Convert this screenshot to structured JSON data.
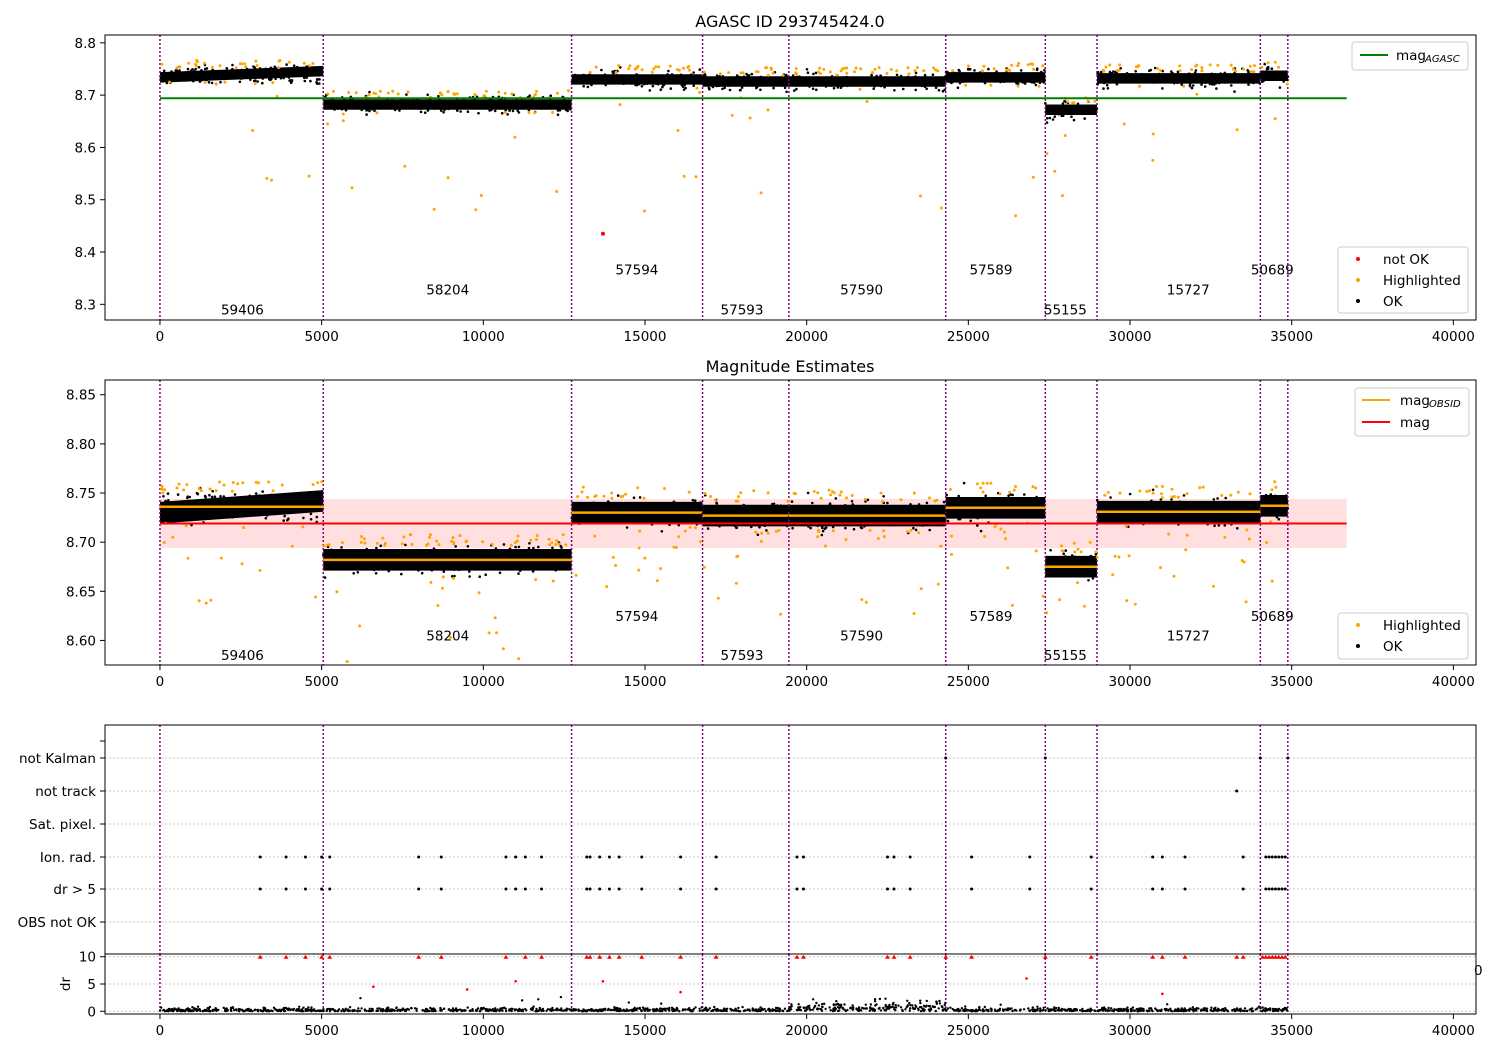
{
  "colors": {
    "ok": "#000000",
    "highlighted": "#ffa500",
    "not_ok": "#ff0000",
    "agasc_line": "#008000",
    "mag_line": "#ff0000",
    "mag_obsid": "#ffa500",
    "mag_band": "#ffc0c0",
    "obs_boundary": "#800080",
    "grid": "#b0b0b0"
  },
  "chart_data": [
    {
      "type": "scatter",
      "title": "AGASC ID 293745424.0",
      "xlim": [
        -1700,
        40700
      ],
      "ylim": [
        8.27,
        8.815
      ],
      "x_ticks": [
        0,
        5000,
        10000,
        15000,
        20000,
        25000,
        30000,
        35000,
        40000
      ],
      "x_tick_labels": [
        "0",
        "5000",
        "10000",
        "15000",
        "20000",
        "25000",
        "30000",
        "35000",
        "40000"
      ],
      "y_ticks": [
        8.3,
        8.4,
        8.5,
        8.6,
        8.7,
        8.8
      ],
      "y_tick_labels": [
        "8.3",
        "8.4",
        "8.5",
        "8.6",
        "8.7",
        "8.8"
      ],
      "obs_boundaries": [
        0,
        5050,
        12730,
        16780,
        19450,
        24300,
        27380,
        28980,
        34030,
        34880
      ],
      "obs_labels": [
        {
          "text": "59406",
          "x": 2550,
          "y": 8.29
        },
        {
          "text": "58204",
          "x": 8900,
          "y": 8.328
        },
        {
          "text": "57594",
          "x": 14750,
          "y": 8.367
        },
        {
          "text": "57593",
          "x": 18000,
          "y": 8.29
        },
        {
          "text": "57590",
          "x": 21700,
          "y": 8.328
        },
        {
          "text": "57589",
          "x": 25700,
          "y": 8.367
        },
        {
          "text": "55155",
          "x": 28000,
          "y": 8.29
        },
        {
          "text": "15727",
          "x": 31800,
          "y": 8.328
        },
        {
          "text": "50689",
          "x": 34400,
          "y": 8.367
        }
      ],
      "segments": [
        {
          "x0": 0,
          "x1": 5050,
          "mean": 8.74,
          "slope": -0.012
        },
        {
          "x0": 5050,
          "x1": 12730,
          "mean": 8.682,
          "slope": 0
        },
        {
          "x0": 12730,
          "x1": 16780,
          "mean": 8.73,
          "slope": 0
        },
        {
          "x0": 16780,
          "x1": 19450,
          "mean": 8.726,
          "slope": 0
        },
        {
          "x0": 19450,
          "x1": 24300,
          "mean": 8.726,
          "slope": 0
        },
        {
          "x0": 24300,
          "x1": 27380,
          "mean": 8.734,
          "slope": 0
        },
        {
          "x0": 27380,
          "x1": 28980,
          "mean": 8.672,
          "slope": 0
        },
        {
          "x0": 28980,
          "x1": 34030,
          "mean": 8.732,
          "slope": 0
        },
        {
          "x0": 34030,
          "x1": 34880,
          "mean": 8.737,
          "slope": 0
        }
      ],
      "mag_agasc": {
        "value": 8.694,
        "x_range": [
          0,
          36700
        ]
      },
      "not_ok_points": [
        {
          "x": 13700,
          "y": 8.435
        }
      ],
      "series": [
        {
          "name": "not OK",
          "marker": "dot",
          "color": "#ff0000"
        },
        {
          "name": "Highlighted",
          "marker": "dot",
          "color": "#ffa500"
        },
        {
          "name": "OK",
          "marker": "dot",
          "color": "#000000"
        }
      ],
      "legend_top": {
        "label": "mag",
        "subscript": "AGASC"
      },
      "legend_placement_top": "top-right",
      "legend_placement_bottom": "lower-right",
      "grid": false
    },
    {
      "type": "scatter",
      "title": "Magnitude Estimates",
      "xlim": [
        -1700,
        40700
      ],
      "ylim": [
        8.575,
        8.865
      ],
      "x_ticks": [
        0,
        5000,
        10000,
        15000,
        20000,
        25000,
        30000,
        35000,
        40000
      ],
      "x_tick_labels": [
        "0",
        "5000",
        "10000",
        "15000",
        "20000",
        "25000",
        "30000",
        "35000",
        "40000"
      ],
      "y_ticks": [
        8.6,
        8.65,
        8.7,
        8.75,
        8.8,
        8.85
      ],
      "y_tick_labels": [
        "8.60",
        "8.65",
        "8.70",
        "8.75",
        "8.80",
        "8.85"
      ],
      "obs_labels": [
        {
          "text": "59406",
          "x": 2550,
          "y": 8.585
        },
        {
          "text": "58204",
          "x": 8900,
          "y": 8.605
        },
        {
          "text": "57594",
          "x": 14750,
          "y": 8.625
        },
        {
          "text": "57593",
          "x": 18000,
          "y": 8.585
        },
        {
          "text": "57590",
          "x": 21700,
          "y": 8.605
        },
        {
          "text": "57589",
          "x": 25700,
          "y": 8.625
        },
        {
          "text": "55155",
          "x": 28000,
          "y": 8.585
        },
        {
          "text": "15727",
          "x": 31800,
          "y": 8.605
        },
        {
          "text": "50689",
          "x": 34400,
          "y": 8.625
        }
      ],
      "mag": {
        "value": 8.719,
        "band": [
          8.694,
          8.744
        ],
        "x_range": [
          0,
          36700
        ]
      },
      "mag_obsid": [
        8.736,
        8.682,
        8.73,
        8.727,
        8.727,
        8.735,
        8.675,
        8.731,
        8.737
      ],
      "series": [
        {
          "name": "Highlighted",
          "marker": "dot",
          "color": "#ffa500"
        },
        {
          "name": "OK",
          "marker": "dot",
          "color": "#000000"
        }
      ],
      "legend_top": [
        {
          "label": "mag",
          "subscript": "OBSID",
          "color": "#ffa500"
        },
        {
          "label": "mag",
          "subscript": "",
          "color": "#ff0000"
        }
      ],
      "legend_placement_top": "top-right",
      "legend_placement_bottom": "lower-right",
      "grid": false
    },
    {
      "type": "scatter",
      "title": "",
      "flag_rows": [
        "not Kalman",
        "not track",
        "Sat. pixel.",
        "Ion. rad.",
        "dr > 5",
        "OBS not OK"
      ],
      "flag_events": {
        "not Kalman": [
          24300,
          27380,
          34030,
          34880
        ],
        "not track": [
          33300
        ],
        "Sat. pixel.": [],
        "Ion. rad.": [
          3100,
          3900,
          4500,
          5000,
          5250,
          8000,
          8700,
          10700,
          11000,
          11300,
          11800,
          13200,
          13300,
          13600,
          13900,
          14200,
          14900,
          16100,
          17200,
          19700,
          19900,
          22500,
          22700,
          23200,
          25100,
          26900,
          28800,
          30700,
          31000,
          31700,
          33500,
          34200,
          34300,
          34400,
          34500,
          34600,
          34700,
          34800
        ],
        "dr > 5": [
          3100,
          3900,
          4500,
          5000,
          5250,
          8000,
          8700,
          10700,
          11000,
          11300,
          11800,
          13200,
          13300,
          13600,
          13900,
          14200,
          14900,
          16100,
          17200,
          19700,
          19900,
          22500,
          22700,
          23200,
          25100,
          26900,
          28800,
          30700,
          31000,
          31700,
          33500,
          34200,
          34300,
          34400,
          34500,
          34600,
          34700,
          34800
        ],
        "OBS not OK": []
      },
      "dr_panel": {
        "ylabel": "dr",
        "y_ticks": [
          0,
          5,
          10
        ],
        "y_tick_labels": [
          "0",
          "5",
          "10"
        ],
        "ylim": [
          -0.5,
          10.5
        ],
        "x_ticks": [
          0,
          5000,
          10000,
          15000,
          20000,
          25000,
          30000,
          35000,
          40000
        ],
        "x_tick_labels": [
          "0",
          "5000",
          "10000",
          "15000",
          "20000",
          "25000",
          "30000",
          "35000",
          "40000"
        ],
        "clipped_markers_x": [
          3100,
          3900,
          4500,
          5000,
          5250,
          8000,
          8700,
          10700,
          11300,
          11800,
          13200,
          13300,
          13600,
          13900,
          14200,
          14900,
          16100,
          17200,
          19700,
          19900,
          22500,
          22700,
          23200,
          24300,
          25100,
          27380,
          28800,
          30700,
          31000,
          31700,
          33300,
          33500,
          34100,
          34200,
          34300,
          34400,
          34500,
          34600,
          34700,
          34800
        ],
        "scattered_red": [
          {
            "x": 6600,
            "y": 4.5
          },
          {
            "x": 9500,
            "y": 4.0
          },
          {
            "x": 11000,
            "y": 5.5
          },
          {
            "x": 13700,
            "y": 5.5
          },
          {
            "x": 16100,
            "y": 3.5
          },
          {
            "x": 26800,
            "y": 6.0
          },
          {
            "x": 31000,
            "y": 3.2
          }
        ],
        "scattered_black": [
          {
            "x": 6200,
            "y": 2.4
          },
          {
            "x": 11200,
            "y": 2.0
          },
          {
            "x": 11700,
            "y": 2.2
          },
          {
            "x": 12400,
            "y": 2.6
          },
          {
            "x": 14500,
            "y": 1.6
          },
          {
            "x": 15500,
            "y": 1.4
          },
          {
            "x": 20200,
            "y": 2.2
          },
          {
            "x": 26000,
            "y": 1.2
          }
        ],
        "stray_tick_label": "0"
      },
      "grid": true
    }
  ]
}
